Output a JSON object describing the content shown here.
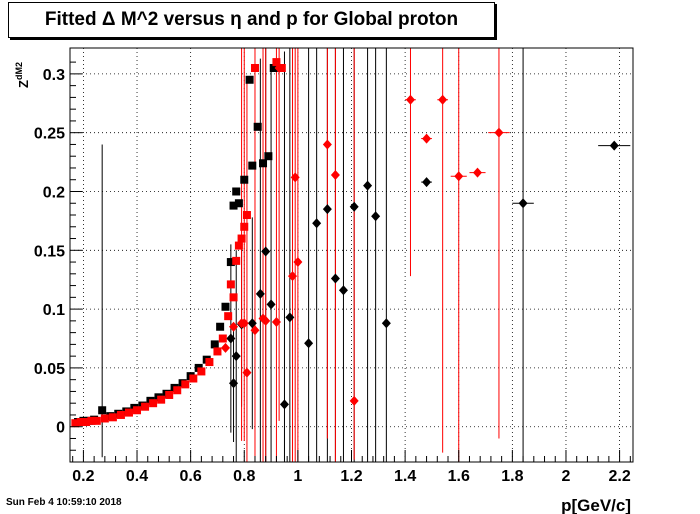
{
  "title": "Fitted Δ M^2 versus η and p for Global proton",
  "timestamp": "Sun Feb  4 10:59:10 2018",
  "colors": {
    "series_black": "#000000",
    "series_red": "#ff0000",
    "grid": "#000000"
  },
  "chart_data": {
    "type": "scatter",
    "xlabel": "p[GeV/c]",
    "ylabel": "Z_{dM2}",
    "xlim": [
      0.15,
      2.25
    ],
    "ylim": [
      -0.03,
      0.322
    ],
    "x_ticks": [
      0.2,
      0.4,
      0.6,
      0.8,
      1,
      1.2,
      1.4,
      1.6,
      1.8,
      2,
      2.2
    ],
    "x_tick_labels": [
      "0.2",
      "0.4",
      "0.6",
      "0.8",
      "1",
      "1.2",
      "1.4",
      "1.6",
      "1.8",
      "2",
      "2.2"
    ],
    "y_ticks": [
      0,
      0.05,
      0.1,
      0.15,
      0.2,
      0.25,
      0.3
    ],
    "y_tick_labels": [
      "0",
      "0.05",
      "0.1",
      "0.15",
      "0.2",
      "0.25",
      "0.3"
    ],
    "grid": true,
    "series": [
      {
        "color": "#000000",
        "marker": "square",
        "points": [
          {
            "x": 0.18,
            "y": 0.004
          },
          {
            "x": 0.2,
            "y": 0.005
          },
          {
            "x": 0.22,
            "y": 0.005
          },
          {
            "x": 0.24,
            "y": 0.006
          },
          {
            "x": 0.27,
            "y": 0.014,
            "eh": 0.226,
            "el": 0.04
          },
          {
            "x": 0.3,
            "y": 0.009
          },
          {
            "x": 0.33,
            "y": 0.011
          },
          {
            "x": 0.36,
            "y": 0.013
          },
          {
            "x": 0.39,
            "y": 0.016
          },
          {
            "x": 0.42,
            "y": 0.018
          },
          {
            "x": 0.45,
            "y": 0.022
          },
          {
            "x": 0.48,
            "y": 0.025
          },
          {
            "x": 0.51,
            "y": 0.028
          },
          {
            "x": 0.54,
            "y": 0.033
          },
          {
            "x": 0.57,
            "y": 0.037
          },
          {
            "x": 0.6,
            "y": 0.043
          },
          {
            "x": 0.63,
            "y": 0.05
          },
          {
            "x": 0.66,
            "y": 0.057
          },
          {
            "x": 0.69,
            "y": 0.07
          },
          {
            "x": 0.71,
            "y": 0.085
          },
          {
            "x": 0.73,
            "y": 0.102
          },
          {
            "x": 0.75,
            "y": 0.14
          },
          {
            "x": 0.76,
            "y": 0.188
          },
          {
            "x": 0.78,
            "y": 0.19
          },
          {
            "x": 0.8,
            "y": 0.21
          },
          {
            "x": 0.83,
            "y": 0.222
          },
          {
            "x": 0.85,
            "y": 0.255
          },
          {
            "x": 0.87,
            "y": 0.224
          },
          {
            "x": 0.89,
            "y": 0.23
          },
          {
            "x": 0.91,
            "y": 0.305
          },
          {
            "x": 0.77,
            "y": 0.2
          },
          {
            "x": 0.82,
            "y": 0.295
          }
        ]
      },
      {
        "color": "#000000",
        "marker": "diamond",
        "points": [
          {
            "x": 0.75,
            "y": 0.075,
            "eh": 0.08,
            "el": 0.08
          },
          {
            "x": 0.77,
            "y": 0.06,
            "eh": 0.09,
            "el": 0.09
          },
          {
            "x": 0.76,
            "y": 0.037,
            "eh": 0.05,
            "el": 0.05
          },
          {
            "x": 0.79,
            "y": 0.087,
            "eh": 0.07,
            "el": 0.07
          },
          {
            "x": 0.83,
            "y": 0.088,
            "eh": 0.09,
            "el": 0.09
          },
          {
            "x": 0.86,
            "y": 0.113,
            "eh": 0.2,
            "el": 0.15
          },
          {
            "x": 0.88,
            "y": 0.149,
            "eh": 0.2,
            "el": 0.2
          },
          {
            "x": 0.9,
            "y": 0.104,
            "eh": 0.2,
            "el": 0.2
          },
          {
            "x": 0.95,
            "y": 0.019,
            "eh": 0.3,
            "el": 0.05
          },
          {
            "x": 0.97,
            "y": 0.093,
            "eh": 0.3,
            "el": 0.15
          },
          {
            "x": 1.04,
            "y": 0.071,
            "eh": 0.3,
            "el": 0.15
          },
          {
            "x": 1.07,
            "y": 0.173,
            "eh": 0.3,
            "el": 0.25
          },
          {
            "x": 1.11,
            "y": 0.185,
            "eh": 0.3,
            "el": 0.25
          },
          {
            "x": 1.14,
            "y": 0.126,
            "eh": 0.3,
            "el": 0.2
          },
          {
            "x": 1.17,
            "y": 0.116,
            "eh": 0.3,
            "el": 0.2
          },
          {
            "x": 1.21,
            "y": 0.187,
            "eh": 0.3,
            "el": 0.25
          },
          {
            "x": 1.26,
            "y": 0.205,
            "eh": 0.3,
            "el": 0.3
          },
          {
            "x": 1.29,
            "y": 0.179,
            "eh": 0.3,
            "el": 0.25
          },
          {
            "x": 1.33,
            "y": 0.088,
            "eh": 0.3,
            "el": 0.15
          },
          {
            "x": 1.48,
            "y": 0.208,
            "xerr": 0.02
          },
          {
            "x": 1.84,
            "y": 0.19,
            "xerr": 0.04,
            "eh": 0.3,
            "el": 0.3
          },
          {
            "x": 2.18,
            "y": 0.239,
            "xerr": 0.06
          }
        ]
      },
      {
        "color": "#ff0000",
        "marker": "square",
        "points": [
          {
            "x": 0.17,
            "y": 0.003
          },
          {
            "x": 0.19,
            "y": 0.004
          },
          {
            "x": 0.21,
            "y": 0.004
          },
          {
            "x": 0.23,
            "y": 0.005
          },
          {
            "x": 0.25,
            "y": 0.005
          },
          {
            "x": 0.28,
            "y": 0.007
          },
          {
            "x": 0.31,
            "y": 0.008
          },
          {
            "x": 0.34,
            "y": 0.01
          },
          {
            "x": 0.37,
            "y": 0.012
          },
          {
            "x": 0.4,
            "y": 0.014
          },
          {
            "x": 0.43,
            "y": 0.017
          },
          {
            "x": 0.46,
            "y": 0.02
          },
          {
            "x": 0.49,
            "y": 0.023
          },
          {
            "x": 0.52,
            "y": 0.027
          },
          {
            "x": 0.55,
            "y": 0.031
          },
          {
            "x": 0.58,
            "y": 0.036
          },
          {
            "x": 0.61,
            "y": 0.041
          },
          {
            "x": 0.64,
            "y": 0.047
          },
          {
            "x": 0.67,
            "y": 0.055
          },
          {
            "x": 0.7,
            "y": 0.064
          },
          {
            "x": 0.72,
            "y": 0.075
          },
          {
            "x": 0.74,
            "y": 0.094
          },
          {
            "x": 0.75,
            "y": 0.121
          },
          {
            "x": 0.76,
            "y": 0.11
          },
          {
            "x": 0.77,
            "y": 0.141
          },
          {
            "x": 0.78,
            "y": 0.154
          },
          {
            "x": 0.79,
            "y": 0.16
          },
          {
            "x": 0.8,
            "y": 0.17
          },
          {
            "x": 0.81,
            "y": 0.18
          },
          {
            "x": 0.84,
            "y": 0.305
          },
          {
            "x": 0.92,
            "y": 0.31
          },
          {
            "x": 0.94,
            "y": 0.305
          }
        ]
      },
      {
        "color": "#ff0000",
        "marker": "diamond",
        "points": [
          {
            "x": 0.73,
            "y": 0.067
          },
          {
            "x": 0.76,
            "y": 0.085
          },
          {
            "x": 0.79,
            "y": 0.088,
            "eh": 0.25,
            "el": 0.1
          },
          {
            "x": 0.8,
            "y": 0.088,
            "eh": 0.25,
            "el": 0.1
          },
          {
            "x": 0.81,
            "y": 0.046,
            "eh": 0.25,
            "el": 0.1
          },
          {
            "x": 0.84,
            "y": 0.082,
            "eh": 0.25,
            "el": 0.15
          },
          {
            "x": 0.87,
            "y": 0.092,
            "eh": 0.25,
            "el": 0.15
          },
          {
            "x": 0.88,
            "y": 0.09,
            "eh": 0.25,
            "el": 0.15
          },
          {
            "x": 0.92,
            "y": 0.089,
            "eh": 0.25,
            "el": 0.15
          },
          {
            "x": 0.93,
            "y": 0.305,
            "eh": 0.1,
            "el": 0.3
          },
          {
            "x": 0.98,
            "y": 0.128,
            "eh": 0.25,
            "el": 0.2
          },
          {
            "x": 1.0,
            "y": 0.14,
            "eh": 0.25,
            "el": 0.2
          },
          {
            "x": 0.99,
            "y": 0.212,
            "eh": 0.25,
            "el": 0.25
          },
          {
            "x": 1.11,
            "y": 0.24,
            "eh": 0.25,
            "el": 0.25
          },
          {
            "x": 1.14,
            "y": 0.214,
            "eh": 0.25,
            "el": 0.25
          },
          {
            "x": 1.21,
            "y": 0.022,
            "eh": 0.3,
            "el": 0.05
          },
          {
            "x": 1.42,
            "y": 0.278,
            "xerr": 0.02,
            "eh": 0.2,
            "el": 0.15
          },
          {
            "x": 1.48,
            "y": 0.245,
            "xerr": 0.02
          },
          {
            "x": 1.54,
            "y": 0.278,
            "xerr": 0.02,
            "eh": 0.2,
            "el": 0.3
          },
          {
            "x": 1.6,
            "y": 0.213,
            "xerr": 0.03,
            "eh": 0.2,
            "el": 0.25
          },
          {
            "x": 1.67,
            "y": 0.216,
            "xerr": 0.03
          },
          {
            "x": 1.75,
            "y": 0.25,
            "xerr": 0.04,
            "eh": 0.2,
            "el": 0.26
          }
        ]
      }
    ]
  }
}
